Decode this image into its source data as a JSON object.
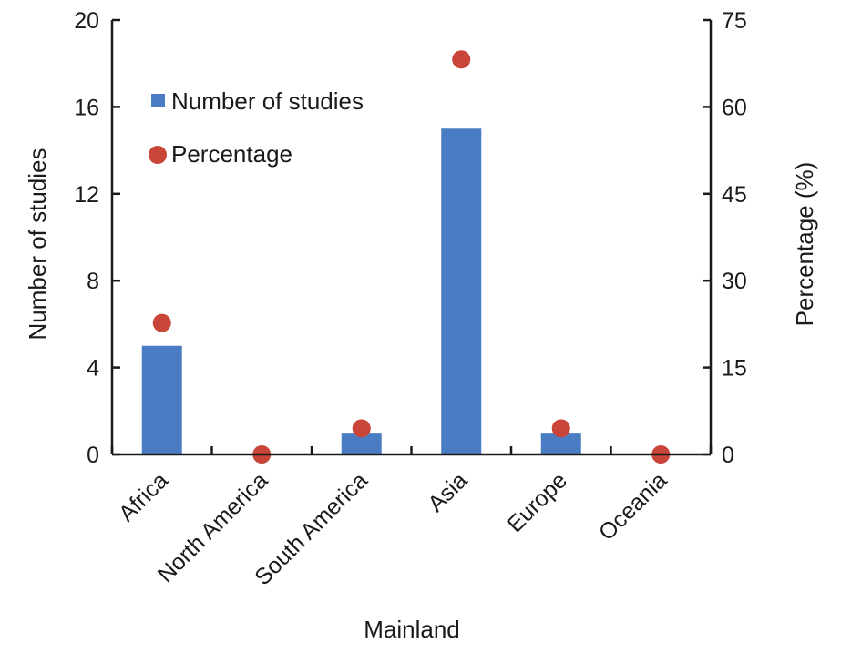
{
  "chart_data": {
    "type": "bar",
    "categories": [
      "Africa",
      "North America",
      "South America",
      "Asia",
      "Europe",
      "Oceania"
    ],
    "series": [
      {
        "name": "Number of studies",
        "type": "bar",
        "axis": "left",
        "values": [
          5,
          0,
          1,
          15,
          1,
          0
        ],
        "color": "#4a7cc4"
      },
      {
        "name": "Percentage",
        "type": "scatter",
        "axis": "right",
        "values": [
          22.7,
          0,
          4.5,
          68.2,
          4.5,
          0
        ],
        "color": "#c9453a"
      }
    ],
    "xlabel": "Mainland",
    "ylabel": "Number of studies",
    "y2label": "Percentage (%)",
    "ylim": [
      0,
      20
    ],
    "y2lim": [
      0,
      75
    ],
    "yticks": [
      "0",
      "4",
      "8",
      "12",
      "16",
      "20"
    ],
    "y2ticks": [
      "0",
      "15",
      "30",
      "45",
      "60",
      "75"
    ],
    "grid": false,
    "legend_position": "top-left"
  }
}
